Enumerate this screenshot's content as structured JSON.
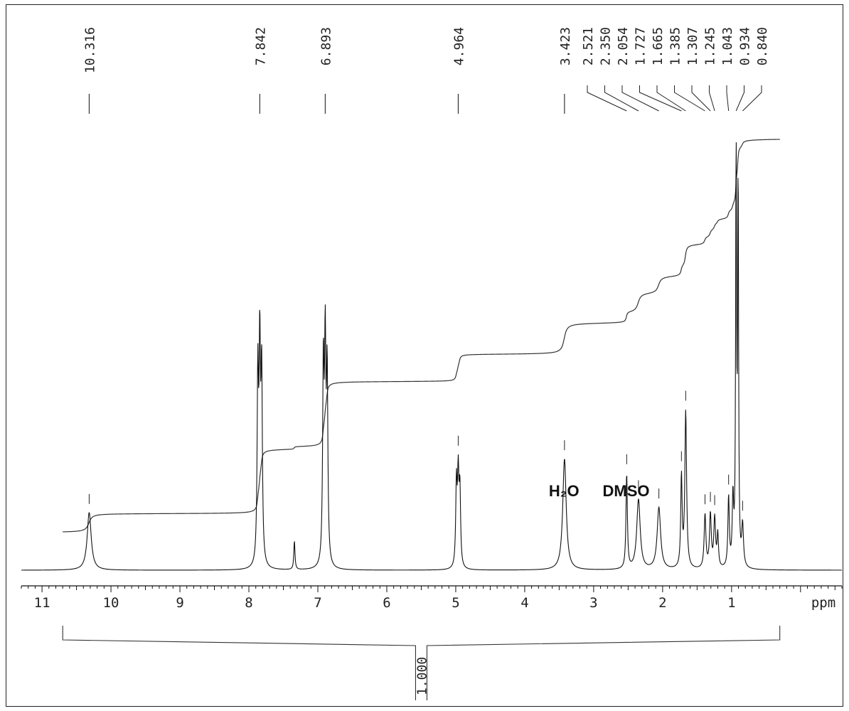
{
  "chart_data": {
    "type": "line",
    "title": "",
    "xlabel": "",
    "x_unit": "ppm",
    "xlim": [
      11.3,
      -0.6
    ],
    "x_reversed": true,
    "x_ticks": [
      11,
      10,
      9,
      8,
      7,
      6,
      5,
      4,
      3,
      2,
      1
    ],
    "grid": false,
    "peaks": [
      {
        "shift": 10.316,
        "label": "10.316",
        "height": 0.14,
        "width": 0.035
      },
      {
        "shift": 7.87,
        "height": 0.45,
        "width": 0.012
      },
      {
        "shift": 7.842,
        "label": "7.842",
        "height": 0.5,
        "width": 0.012
      },
      {
        "shift": 7.815,
        "height": 0.45,
        "width": 0.012
      },
      {
        "shift": 7.34,
        "height": 0.07,
        "width": 0.01
      },
      {
        "shift": 6.92,
        "height": 0.47,
        "width": 0.012
      },
      {
        "shift": 6.893,
        "label": "6.893",
        "height": 0.5,
        "width": 0.012
      },
      {
        "shift": 6.865,
        "height": 0.45,
        "width": 0.012
      },
      {
        "shift": 4.99,
        "height": 0.2,
        "width": 0.012
      },
      {
        "shift": 4.964,
        "label": "4.964",
        "height": 0.21,
        "width": 0.012
      },
      {
        "shift": 4.94,
        "height": 0.18,
        "width": 0.012
      },
      {
        "shift": 3.423,
        "label": "3.423",
        "height": 0.27,
        "width": 0.03
      },
      {
        "shift": 2.521,
        "label": "2.521",
        "height": 0.23,
        "width": 0.012
      },
      {
        "shift": 2.35,
        "label": "2.350",
        "height": 0.17,
        "width": 0.03
      },
      {
        "shift": 2.054,
        "label": "2.054",
        "height": 0.15,
        "width": 0.03
      },
      {
        "shift": 1.727,
        "label": "1.727",
        "height": 0.22,
        "width": 0.012
      },
      {
        "shift": 1.665,
        "label": "1.665",
        "height": 0.38,
        "width": 0.015
      },
      {
        "shift": 1.385,
        "label": "1.385",
        "height": 0.13,
        "width": 0.015
      },
      {
        "shift": 1.307,
        "label": "1.307",
        "height": 0.13,
        "width": 0.015
      },
      {
        "shift": 1.245,
        "label": "1.245",
        "height": 0.12,
        "width": 0.015
      },
      {
        "shift": 1.2,
        "height": 0.08,
        "width": 0.012
      },
      {
        "shift": 1.043,
        "label": "1.043",
        "height": 0.17,
        "width": 0.012
      },
      {
        "shift": 0.98,
        "height": 0.16,
        "width": 0.012
      },
      {
        "shift": 0.934,
        "label": "0.934",
        "height": 1.0,
        "width": 0.008
      },
      {
        "shift": 0.905,
        "height": 0.93,
        "width": 0.008
      },
      {
        "shift": 0.84,
        "label": "0.840",
        "height": 0.1,
        "width": 0.015
      }
    ],
    "annotations": [
      {
        "text": "H₂O",
        "shift": 3.45
      },
      {
        "text": "DMSO",
        "shift": 2.55
      }
    ],
    "integral": {
      "value": "1.000",
      "range": [
        10.7,
        0.3
      ]
    }
  }
}
